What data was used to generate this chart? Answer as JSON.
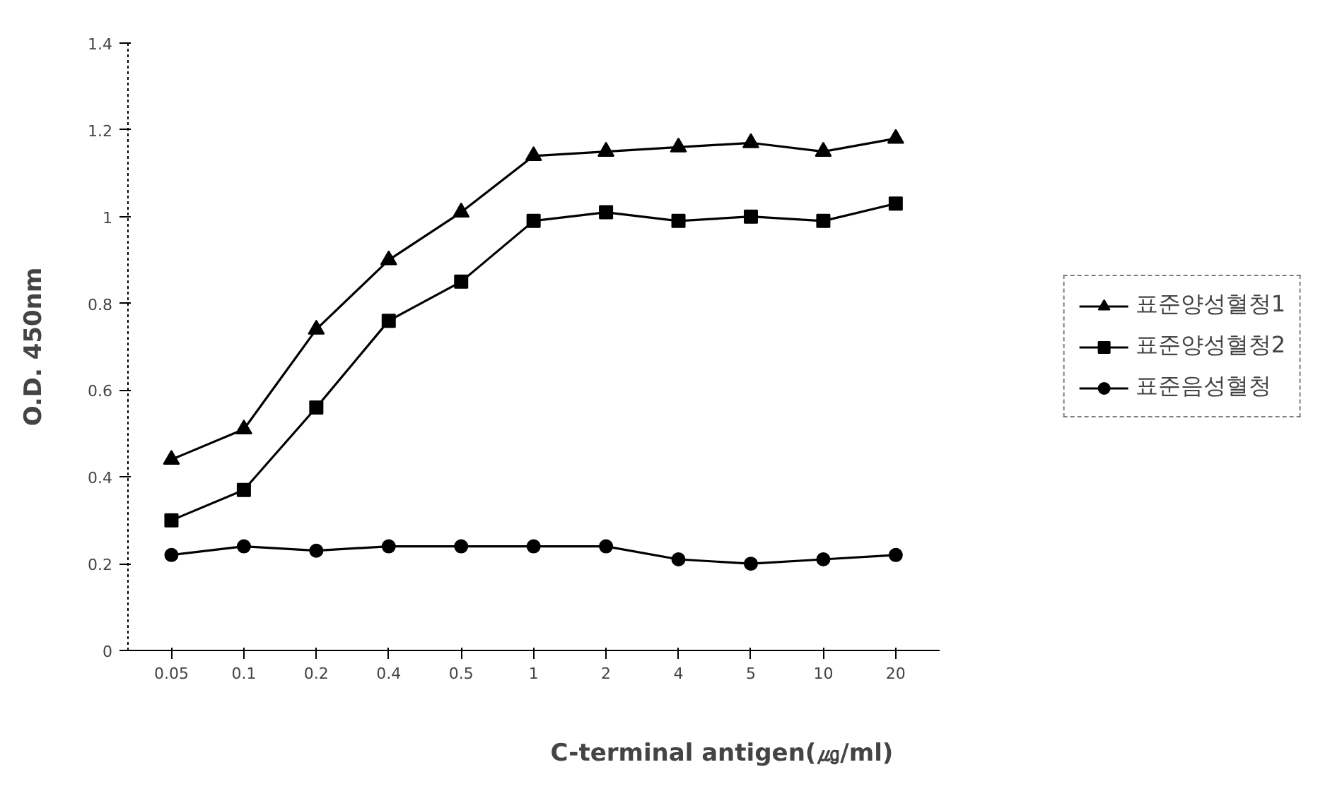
{
  "chart_data": {
    "type": "line",
    "xlabel": "C-terminal antigen(㎍/ml)",
    "ylabel": "O.D. 450nm",
    "categories": [
      "0.05",
      "0.1",
      "0.2",
      "0.4",
      "0.5",
      "1",
      "2",
      "4",
      "5",
      "10",
      "20"
    ],
    "ylim": [
      0,
      1.4
    ],
    "yticks": [
      0,
      0.2,
      0.4,
      0.6,
      0.8,
      1,
      1.2,
      1.4
    ],
    "grid": false,
    "legend": "right",
    "line_style": "solid",
    "series": [
      {
        "name": "표준양성혈청1",
        "color": "#000000",
        "marker": "triangle",
        "values": [
          0.44,
          0.51,
          0.74,
          0.9,
          1.01,
          1.14,
          1.15,
          1.16,
          1.17,
          1.15,
          1.18
        ]
      },
      {
        "name": "표준양성혈청2",
        "color": "#000000",
        "marker": "square",
        "values": [
          0.3,
          0.37,
          0.56,
          0.76,
          0.85,
          0.99,
          1.01,
          0.99,
          1.0,
          0.99,
          1.03
        ]
      },
      {
        "name": "표준음성혈청",
        "color": "#000000",
        "marker": "circle",
        "values": [
          0.22,
          0.24,
          0.23,
          0.24,
          0.24,
          0.24,
          0.24,
          0.21,
          0.2,
          0.21,
          0.22
        ]
      }
    ]
  }
}
